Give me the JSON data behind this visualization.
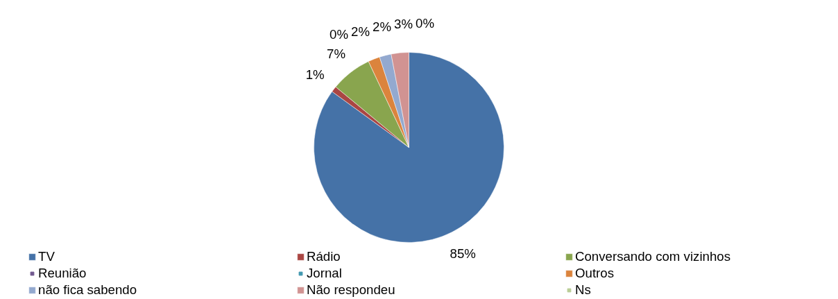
{
  "chart_data": {
    "type": "pie",
    "categories": [
      "TV",
      "Rádio",
      "Conversando com vizinhos",
      "Reunião",
      "Jornal",
      "Outros",
      "não fica sabendo",
      "Não respondeu",
      "Ns"
    ],
    "values": [
      85,
      1,
      7,
      0,
      0,
      2,
      2,
      3,
      0
    ],
    "colors": [
      "#4572a7",
      "#aa4643",
      "#89a54e",
      "#71588f",
      "#4198af",
      "#db843d",
      "#93a9cf",
      "#d19392",
      "#b9cd96"
    ],
    "value_labels": [
      "85%",
      "1%",
      "7%",
      "0%",
      null,
      "2%",
      "2%",
      "3%",
      "0%"
    ],
    "legend": "bottom"
  }
}
